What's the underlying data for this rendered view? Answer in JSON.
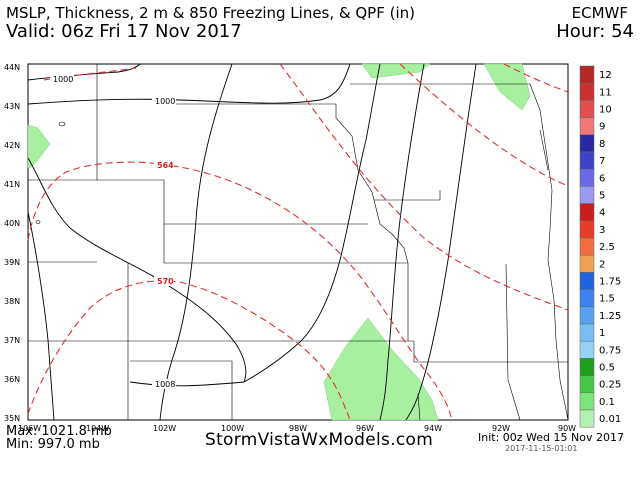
{
  "header": {
    "title": "MSLP, Thickness, 2 m & 850 Freezing Lines, & QPF (in)",
    "valid": "Valid: 06z Fri 17 Nov 2017",
    "model": "ECMWF",
    "hour": "Hour: 54"
  },
  "footer": {
    "max": "Max: 1021.8 mb",
    "min": "Min: 997.0 mb",
    "site": "StormVistaWxModels.com",
    "init": "Init: 00z Wed 15 Nov 2017",
    "stamp": "2017-11-15-01:01"
  },
  "map": {
    "lat_labels": [
      "44N",
      "43N",
      "42N",
      "41N",
      "40N",
      "39N",
      "38N",
      "37N",
      "36N",
      "35N"
    ],
    "lon_labels": [
      "106W",
      "104W",
      "102W",
      "100W",
      "98W",
      "96W",
      "94W",
      "92W",
      "90W"
    ],
    "contour_labels": {
      "mslp": [
        "1000",
        "1000",
        "1008"
      ],
      "thickness": [
        "564",
        "570"
      ]
    },
    "colors": {
      "qpf_fill": "#a8f0a0",
      "thickness_line": "#e03030",
      "isobar": "#000000",
      "border": "#000000"
    }
  },
  "colorbar": {
    "labels": [
      "12",
      "11",
      "10",
      "9",
      "8",
      "7",
      "6",
      "5",
      "4",
      "3",
      "2.5",
      "2",
      "1.75",
      "1.5",
      "1.25",
      "1",
      "0.75",
      "0.5",
      "0.25",
      "0.1",
      "0.01"
    ],
    "colors": [
      "#b52828",
      "#c83232",
      "#e05050",
      "#f07878",
      "#2828a0",
      "#4040c8",
      "#6a6ae6",
      "#9a9af0",
      "#c81e1e",
      "#e63c28",
      "#f06e3c",
      "#f0a050",
      "#1e64dc",
      "#3c82f0",
      "#5aa0f0",
      "#78bef4",
      "#96d2f4",
      "#1ea01e",
      "#46c846",
      "#78e678",
      "#b4f0b4"
    ]
  }
}
